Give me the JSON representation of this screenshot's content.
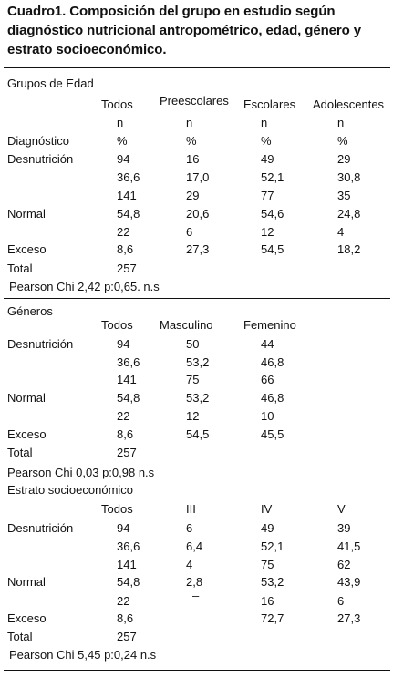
{
  "title": "Cuadro1. Composición del grupo en estudio según diagnóstico nutricional antropométrico, edad, género y estrato socioeconómico.",
  "sections": [
    {
      "header": "Grupos de Edad",
      "columns": [
        "Todos",
        "Preescolares",
        "Escolares",
        "Adolescentes"
      ],
      "subheader_n": [
        "n",
        "n",
        "n",
        "n"
      ],
      "diagnostico_label": "Diagnóstico",
      "subheader_pct": [
        "%",
        "%",
        "%",
        "%"
      ],
      "rows": [
        {
          "label": "Desnutrición",
          "values": [
            "94",
            "16",
            "49",
            "29"
          ]
        },
        {
          "label": "",
          "values": [
            "36,6",
            "17,0",
            "52,1",
            "30,8"
          ]
        },
        {
          "label": "",
          "values": [
            "141",
            "29",
            "77",
            "35"
          ]
        },
        {
          "label": "Normal",
          "values": [
            "54,8",
            "20,6",
            "54,6",
            "24,8"
          ]
        },
        {
          "label": "",
          "values": [
            "22",
            "6",
            "12",
            "4"
          ]
        },
        {
          "label": "Exceso",
          "values": [
            "8,6",
            "27,3",
            "54,5",
            "18,2"
          ]
        },
        {
          "label": "Total",
          "values": [
            "257",
            "",
            "",
            ""
          ]
        }
      ],
      "stat": "Pearson Chi  2,42 p:0,65. n.s"
    },
    {
      "header": "Géneros",
      "columns": [
        "Todos",
        "Masculino",
        "Femenino"
      ],
      "rows": [
        {
          "label": "Desnutrición",
          "values": [
            "94",
            "50",
            "44"
          ]
        },
        {
          "label": "",
          "values": [
            "36,6",
            "53,2",
            "46,8"
          ]
        },
        {
          "label": "",
          "values": [
            "141",
            "75",
            "66"
          ]
        },
        {
          "label": "Normal",
          "values": [
            "54,8",
            "53,2",
            "46,8"
          ]
        },
        {
          "label": "",
          "values": [
            "22",
            "12",
            "10"
          ]
        },
        {
          "label": "Exceso",
          "values": [
            "8,6",
            "54,5",
            "45,5"
          ]
        },
        {
          "label": "Total",
          "values": [
            "257",
            "",
            ""
          ]
        }
      ],
      "stat": "Pearson Chi  0,03 p:0,98 n.s"
    },
    {
      "header": "Estrato socioeconómico",
      "columns": [
        "Todos",
        "III",
        "IV",
        "V"
      ],
      "rows": [
        {
          "label": "Desnutrición",
          "values": [
            "94",
            "6",
            "49",
            "39"
          ]
        },
        {
          "label": "",
          "values": [
            "36,6",
            "6,4",
            "52,1",
            "41,5"
          ]
        },
        {
          "label": "",
          "values": [
            "141",
            "4",
            "75",
            "62"
          ]
        },
        {
          "label": "Normal",
          "values": [
            "54,8",
            "2,8",
            "53,2",
            "43,9"
          ]
        },
        {
          "label": "",
          "values": [
            "22",
            "–",
            "16",
            "6"
          ]
        },
        {
          "label": "Exceso",
          "values": [
            "8,6",
            "",
            "72,7",
            "27,3"
          ]
        },
        {
          "label": "Total",
          "values": [
            "257",
            "",
            "",
            ""
          ]
        }
      ],
      "stat": "Pearson Chi  5,45 p:0,24 n.s"
    }
  ]
}
